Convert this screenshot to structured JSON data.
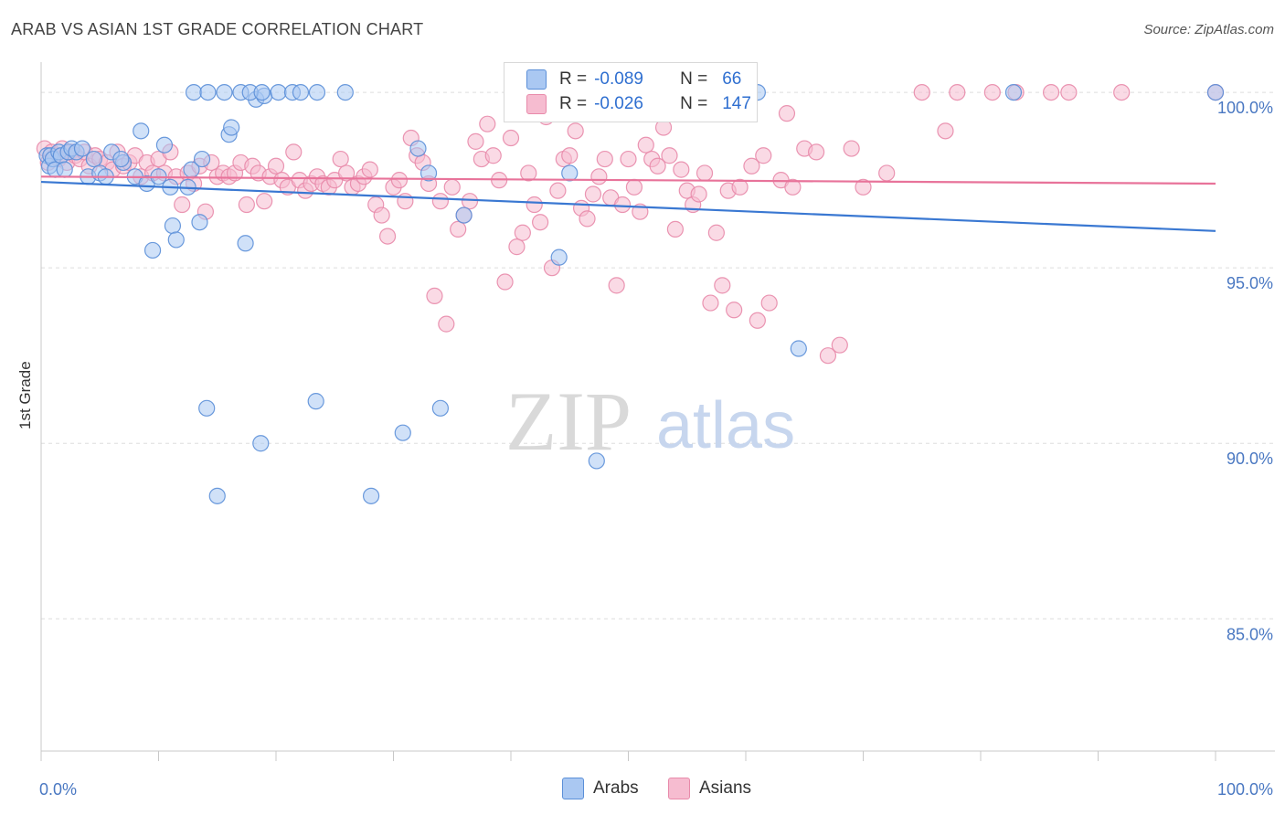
{
  "header": {
    "title": "ARAB VS ASIAN 1ST GRADE CORRELATION CHART",
    "source": "Source: ZipAtlas.com"
  },
  "watermark": {
    "zip": "ZIP",
    "atlas": "atlas"
  },
  "legend": {
    "rows": [
      {
        "r_label": "R =",
        "r_value": "-0.089",
        "n_label": "N =",
        "n_value": "66"
      },
      {
        "r_label": "R =",
        "r_value": "-0.026",
        "n_label": "N =",
        "n_value": "147"
      }
    ]
  },
  "colors": {
    "arabs_fill": "#aac8f2",
    "arabs_stroke": "#5b8fd8",
    "arabs_line": "#3a78d2",
    "asians_fill": "#f6bcd0",
    "asians_stroke": "#e88aaa",
    "asians_line": "#e8739a",
    "grid": "#dddddd",
    "tick_text": "#4a78c2"
  },
  "chart_data": {
    "type": "scatter",
    "title": "ARAB VS ASIAN 1ST GRADE CORRELATION CHART",
    "xlabel": "",
    "ylabel": "1st Grade",
    "xlim": [
      0,
      100
    ],
    "ylim": [
      80.4,
      101.2
    ],
    "x_tick_labels": [
      "0.0%",
      "100.0%"
    ],
    "y_ticks": [
      85,
      90,
      95,
      100
    ],
    "y_tick_labels": [
      "85.0%",
      "90.0%",
      "95.0%",
      "100.0%"
    ],
    "grid": true,
    "legend_position": "bottom",
    "series": [
      {
        "name": "Arabs",
        "r": -0.089,
        "n": 66,
        "trend": [
          [
            0,
            97.45
          ],
          [
            100,
            96.05
          ]
        ],
        "points": [
          [
            0.5,
            98.2
          ],
          [
            0.7,
            97.9
          ],
          [
            0.8,
            98.2
          ],
          [
            1.0,
            98.1
          ],
          [
            1.2,
            97.8
          ],
          [
            1.5,
            98.3
          ],
          [
            1.7,
            98.2
          ],
          [
            2.0,
            97.8
          ],
          [
            2.3,
            98.3
          ],
          [
            2.6,
            98.4
          ],
          [
            3.0,
            98.3
          ],
          [
            3.5,
            98.4
          ],
          [
            4.0,
            97.6
          ],
          [
            4.5,
            98.1
          ],
          [
            5.0,
            97.7
          ],
          [
            5.5,
            97.6
          ],
          [
            6.0,
            98.3
          ],
          [
            7.0,
            98.0
          ],
          [
            8.0,
            97.6
          ],
          [
            8.5,
            98.9
          ],
          [
            9.0,
            97.4
          ],
          [
            9.5,
            95.5
          ],
          [
            10.0,
            97.6
          ],
          [
            10.5,
            98.5
          ],
          [
            11.0,
            97.3
          ],
          [
            11.2,
            96.2
          ],
          [
            11.5,
            95.8
          ],
          [
            12.5,
            97.3
          ],
          [
            12.8,
            97.8
          ],
          [
            13.5,
            96.3
          ],
          [
            13.7,
            98.1
          ],
          [
            14.1,
            91.0
          ],
          [
            15.0,
            88.5
          ],
          [
            16.0,
            98.8
          ],
          [
            16.2,
            99.0
          ],
          [
            17.4,
            95.7
          ],
          [
            18.3,
            99.8
          ],
          [
            18.7,
            90.0
          ],
          [
            19.0,
            99.9
          ],
          [
            23.4,
            91.2
          ],
          [
            23.5,
            100.0
          ],
          [
            28.1,
            88.5
          ],
          [
            30.8,
            90.3
          ],
          [
            32.1,
            98.4
          ],
          [
            33.0,
            97.7
          ],
          [
            34.0,
            91.0
          ],
          [
            36.0,
            96.5
          ],
          [
            44.1,
            95.3
          ],
          [
            45.0,
            97.7
          ],
          [
            47.3,
            89.5
          ],
          [
            64.5,
            92.7
          ],
          [
            13.0,
            100.0
          ],
          [
            14.2,
            100.0
          ],
          [
            15.6,
            100.0
          ],
          [
            17.0,
            100.0
          ],
          [
            17.8,
            100.0
          ],
          [
            18.8,
            100.0
          ],
          [
            20.2,
            100.0
          ],
          [
            21.4,
            100.0
          ],
          [
            22.1,
            100.0
          ],
          [
            25.9,
            100.0
          ],
          [
            47.0,
            100.0
          ],
          [
            61.0,
            100.0
          ],
          [
            82.8,
            100.0
          ],
          [
            100.0,
            100.0
          ],
          [
            6.8,
            98.1
          ]
        ]
      },
      {
        "name": "Asians",
        "r": -0.026,
        "n": 147,
        "trend": [
          [
            0,
            97.6
          ],
          [
            100,
            97.4
          ]
        ],
        "points": [
          [
            0.3,
            98.4
          ],
          [
            0.6,
            98.0
          ],
          [
            0.9,
            98.3
          ],
          [
            1.2,
            98.2
          ],
          [
            1.5,
            98.1
          ],
          [
            1.8,
            98.4
          ],
          [
            2.2,
            98.0
          ],
          [
            2.5,
            98.3
          ],
          [
            2.9,
            98.2
          ],
          [
            3.3,
            98.1
          ],
          [
            3.7,
            98.3
          ],
          [
            4.1,
            97.9
          ],
          [
            4.6,
            98.2
          ],
          [
            5.0,
            98.1
          ],
          [
            5.6,
            98.0
          ],
          [
            6.1,
            97.8
          ],
          [
            6.5,
            98.3
          ],
          [
            7.0,
            97.9
          ],
          [
            7.5,
            98.0
          ],
          [
            8.0,
            98.2
          ],
          [
            8.5,
            97.6
          ],
          [
            9.0,
            98.0
          ],
          [
            9.5,
            97.7
          ],
          [
            10.0,
            98.1
          ],
          [
            10.5,
            97.7
          ],
          [
            11.0,
            98.3
          ],
          [
            11.5,
            97.6
          ],
          [
            12.0,
            96.8
          ],
          [
            12.5,
            97.7
          ],
          [
            13.0,
            97.4
          ],
          [
            13.5,
            97.9
          ],
          [
            14.0,
            96.6
          ],
          [
            14.5,
            98.0
          ],
          [
            15.0,
            97.6
          ],
          [
            15.5,
            97.7
          ],
          [
            16.0,
            97.6
          ],
          [
            16.5,
            97.7
          ],
          [
            17.0,
            98.0
          ],
          [
            17.5,
            96.8
          ],
          [
            18.0,
            97.9
          ],
          [
            18.5,
            97.7
          ],
          [
            19.0,
            96.9
          ],
          [
            19.5,
            97.6
          ],
          [
            20.0,
            97.9
          ],
          [
            20.5,
            97.5
          ],
          [
            21.0,
            97.3
          ],
          [
            21.5,
            98.3
          ],
          [
            22.0,
            97.5
          ],
          [
            22.5,
            97.2
          ],
          [
            23.0,
            97.4
          ],
          [
            23.5,
            97.6
          ],
          [
            24.0,
            97.4
          ],
          [
            24.5,
            97.3
          ],
          [
            25.0,
            97.5
          ],
          [
            25.5,
            98.1
          ],
          [
            26.0,
            97.7
          ],
          [
            26.5,
            97.3
          ],
          [
            27.0,
            97.4
          ],
          [
            27.5,
            97.6
          ],
          [
            28.0,
            97.8
          ],
          [
            28.5,
            96.8
          ],
          [
            29.0,
            96.5
          ],
          [
            29.5,
            95.9
          ],
          [
            30.0,
            97.3
          ],
          [
            30.5,
            97.5
          ],
          [
            31.0,
            96.9
          ],
          [
            31.5,
            98.7
          ],
          [
            32.0,
            98.2
          ],
          [
            32.5,
            98.0
          ],
          [
            33.0,
            97.4
          ],
          [
            33.5,
            94.2
          ],
          [
            34.0,
            96.9
          ],
          [
            34.5,
            93.4
          ],
          [
            35.0,
            97.3
          ],
          [
            35.5,
            96.1
          ],
          [
            36.0,
            96.5
          ],
          [
            36.5,
            96.9
          ],
          [
            37.0,
            98.6
          ],
          [
            37.5,
            98.1
          ],
          [
            38.0,
            99.1
          ],
          [
            38.5,
            98.2
          ],
          [
            39.0,
            97.5
          ],
          [
            39.5,
            94.6
          ],
          [
            40.0,
            98.7
          ],
          [
            40.5,
            95.6
          ],
          [
            41.0,
            96.0
          ],
          [
            41.5,
            97.7
          ],
          [
            42.0,
            96.8
          ],
          [
            42.5,
            96.3
          ],
          [
            43.0,
            99.3
          ],
          [
            43.5,
            95.0
          ],
          [
            44.0,
            97.2
          ],
          [
            44.5,
            98.1
          ],
          [
            45.0,
            98.2
          ],
          [
            45.5,
            98.9
          ],
          [
            46.0,
            96.7
          ],
          [
            46.5,
            96.4
          ],
          [
            47.0,
            97.1
          ],
          [
            47.5,
            97.6
          ],
          [
            48.0,
            98.1
          ],
          [
            48.5,
            97.0
          ],
          [
            49.0,
            94.5
          ],
          [
            49.5,
            96.8
          ],
          [
            50.0,
            98.1
          ],
          [
            50.5,
            97.3
          ],
          [
            51.0,
            96.6
          ],
          [
            51.5,
            98.5
          ],
          [
            52.0,
            98.1
          ],
          [
            52.5,
            97.9
          ],
          [
            53.0,
            99.0
          ],
          [
            53.5,
            98.2
          ],
          [
            54.0,
            96.1
          ],
          [
            54.5,
            97.8
          ],
          [
            55.0,
            97.2
          ],
          [
            55.5,
            96.8
          ],
          [
            56.0,
            97.1
          ],
          [
            56.5,
            97.7
          ],
          [
            57.0,
            94.0
          ],
          [
            57.5,
            96.0
          ],
          [
            58.0,
            94.5
          ],
          [
            58.5,
            97.2
          ],
          [
            59.0,
            93.8
          ],
          [
            59.5,
            97.3
          ],
          [
            60.0,
            99.4
          ],
          [
            60.5,
            97.9
          ],
          [
            61.0,
            93.5
          ],
          [
            61.5,
            98.2
          ],
          [
            62.0,
            94.0
          ],
          [
            63.0,
            97.5
          ],
          [
            63.5,
            99.4
          ],
          [
            64.0,
            97.3
          ],
          [
            65.0,
            98.4
          ],
          [
            66.0,
            98.3
          ],
          [
            67.0,
            92.5
          ],
          [
            68.0,
            92.8
          ],
          [
            69.0,
            98.4
          ],
          [
            70.0,
            97.3
          ],
          [
            72.0,
            97.7
          ],
          [
            75.0,
            100.0
          ],
          [
            77.0,
            98.9
          ],
          [
            78.0,
            100.0
          ],
          [
            81.0,
            100.0
          ],
          [
            83.0,
            100.0
          ],
          [
            86.0,
            100.0
          ],
          [
            87.5,
            100.0
          ],
          [
            92.0,
            100.0
          ],
          [
            100.0,
            100.0
          ]
        ]
      }
    ]
  }
}
